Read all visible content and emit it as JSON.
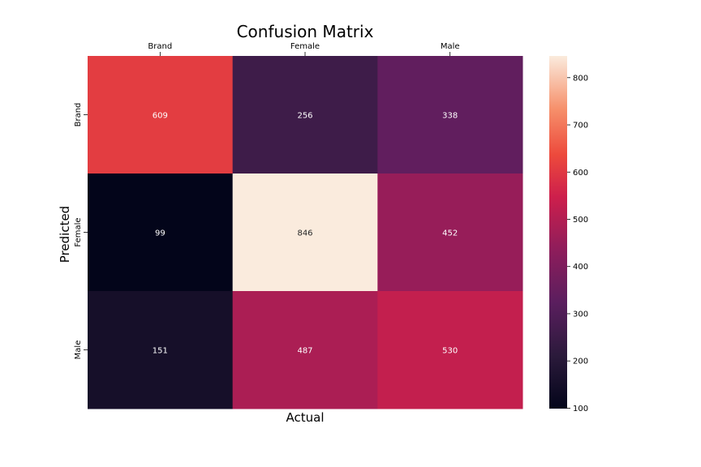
{
  "chart_data": {
    "type": "heatmap",
    "title": "Confusion Matrix",
    "xlabel": "Actual",
    "ylabel": "Predicted",
    "x_categories": [
      "Brand",
      "Female",
      "Male"
    ],
    "y_categories": [
      "Brand",
      "Female",
      "Male"
    ],
    "values": [
      [
        609,
        256,
        338
      ],
      [
        99,
        846,
        452
      ],
      [
        151,
        487,
        530
      ]
    ],
    "colorbar": {
      "range": [
        99,
        846
      ],
      "ticks": [
        100,
        200,
        300,
        400,
        500,
        600,
        700,
        800
      ]
    },
    "x_tick_position": "top",
    "grid": false,
    "colormap": "rocket"
  }
}
